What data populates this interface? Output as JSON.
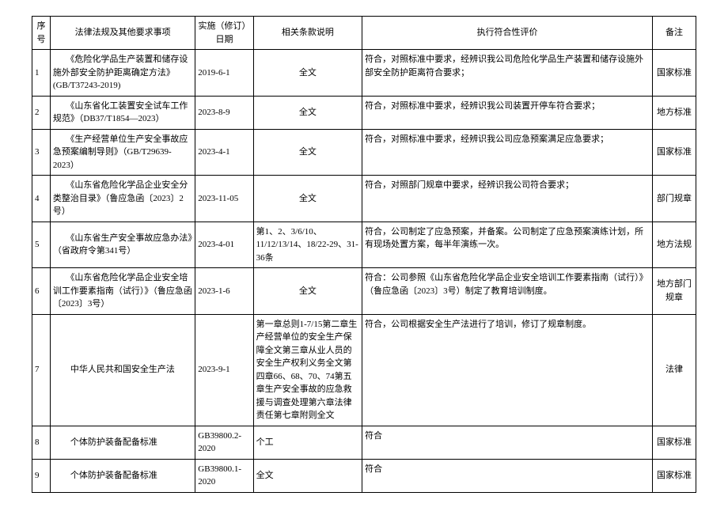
{
  "headers": {
    "num": "序号",
    "law": "法律法规及其他要求事项",
    "date": "实施（修订）日期",
    "clause": "相关条款说明",
    "eval": "执行符合性评价",
    "remark": "备注"
  },
  "rows": [
    {
      "num": "1",
      "law": "　　《危险化学品生产装置和储存设施外部安全防护距离确定方法》(GB/T37243-2019)",
      "date": "2019-6-1",
      "clause": "全文",
      "eval": "符合，对照标准中要求，经辨识我公司危险化学品生产装置和储存设施外部安全防护距离符合要求；",
      "remark": "国家标准"
    },
    {
      "num": "2",
      "law": "　　《山东省化工装置安全试车工作规范》（DB37/T1854—2023）",
      "date": "2023-8-9",
      "clause": "全文",
      "eval": "符合，对照标准中要求，经辨识我公司装置开停车符合要求；",
      "remark": "地方标准"
    },
    {
      "num": "3",
      "law": "　　《生产经营单位生产安全事故应急预案编制导则》（GB/T29639-2023）",
      "date": "2023-4-1",
      "clause": "全文",
      "eval": "符合，对照标准中要求，经辨识我公司应急预案满足应急要求；",
      "remark": "国家标准"
    },
    {
      "num": "4",
      "law": "　　《山东省危险化学品企业安全分类整治目录》（鲁应急函〔2023〕2号）",
      "date": "2023-11-05",
      "clause": "全文",
      "eval": "符合，对照部门规章中要求，经辨识我公司符合要求；",
      "remark": "部门规章"
    },
    {
      "num": "5",
      "law": "　　《山东省生产安全事故应急办法》（省政府令第341号）",
      "date": "2023-4-01",
      "clause": "第1、2、3/6/10、11/12/13/14、18/22-29、31-36条",
      "eval": "符合，公司制定了应急预案，并备案。公司制定了应急预案演练计划，所有现场处置方案，每半年演练一次。",
      "remark": "地方法规"
    },
    {
      "num": "6",
      "law": "　　《山东省危险化学品企业安全培训工作要素指南（试行）》（鲁应急函〔2023〕3号）",
      "date": "2023-1-6",
      "clause": "全文",
      "eval": "符合：公司参照《山东省危险化学品企业安全培训工作要素指南（试行）》（鲁应急函〔2023〕3号）制定了教育培训制度。",
      "remark": "地方部门规章"
    },
    {
      "num": "7",
      "law": "　　中华人民共和国安全生产法",
      "date": "2023-9-1",
      "clause": "第一章总则1-7/15第二章生产经营单位的安全生产保障全文第三章从业人员的安全生产权利义务全文第四章66、68、70、74第五章生产安全事故的应急救援与调查处理第六章法律责任第七章附则全文",
      "eval": "符合，公司根据安全生产法进行了培训，修订了规章制度。",
      "remark": "法律"
    },
    {
      "num": "8",
      "law": "　　个体防护装备配备标准",
      "date": "GB39800.2-2020",
      "clause": "个工",
      "eval": "符合",
      "remark": "国家标准"
    },
    {
      "num": "9",
      "law": "　　个体防护装备配备标准",
      "date": "GB39800.1-2020",
      "clause": "全文",
      "eval": "符合",
      "remark": "国家标准"
    }
  ],
  "styles": {
    "border_color": "#000000",
    "background_color": "#ffffff",
    "font_size": 11,
    "font_family": "SimSun"
  }
}
